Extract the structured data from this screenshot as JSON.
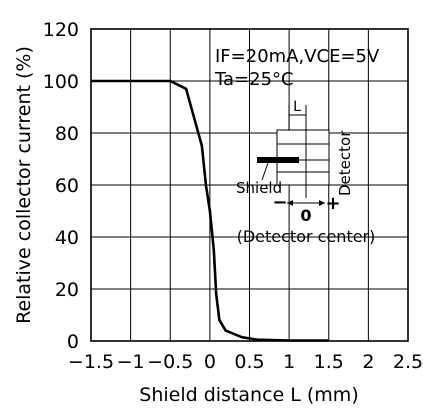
{
  "chart_data": {
    "type": "line",
    "title": "",
    "xlabel": "Shield distance L (mm)",
    "ylabel": "Relative collector current (%)",
    "xlim": [
      -1.5,
      2.5
    ],
    "ylim": [
      0,
      120
    ],
    "xticks": [
      -1.5,
      -1,
      -0.5,
      0,
      0.5,
      1,
      1.5,
      2,
      2.5
    ],
    "xtick_labels": [
      "−1.5",
      "−1",
      "−0.5",
      "0",
      "0.5",
      "1",
      "1.5",
      "2",
      "2.5"
    ],
    "yticks": [
      0,
      20,
      40,
      60,
      80,
      100,
      120
    ],
    "ytick_labels": [
      "0",
      "20",
      "40",
      "60",
      "80",
      "100",
      "120"
    ],
    "grid": true,
    "series": [
      {
        "points": [
          [
            -1.5,
            100
          ],
          [
            -0.6,
            100
          ],
          [
            -0.5,
            100
          ],
          [
            -0.3,
            97
          ],
          [
            -0.1,
            75
          ],
          [
            -0.05,
            60
          ],
          [
            0.0,
            50
          ],
          [
            0.05,
            35
          ],
          [
            0.08,
            18
          ],
          [
            0.12,
            8
          ],
          [
            0.2,
            4
          ],
          [
            0.4,
            1.5
          ],
          [
            0.6,
            0.5
          ],
          [
            1.0,
            0.2
          ],
          [
            1.5,
            0.2
          ]
        ]
      }
    ],
    "annotations": {
      "condition_line1": "IF=20mA,VCE=5V",
      "condition_line2": "Ta=25°C",
      "inset": {
        "l_label": "L",
        "shield_label": "Shield",
        "detector_label": "Detector",
        "minus": "−",
        "zero": "0",
        "plus": "+",
        "center_label": "(Detector center)"
      }
    }
  }
}
